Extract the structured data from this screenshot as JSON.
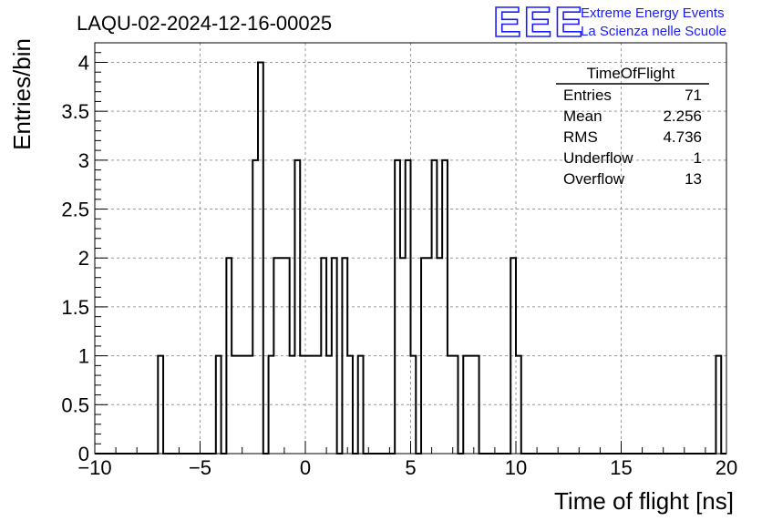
{
  "chart_data": {
    "type": "bar",
    "title": "LAQU-02-2024-12-16-00025",
    "xlabel": "Time of flight [ns]",
    "ylabel": "Entries/bin",
    "xlim": [
      -10,
      20
    ],
    "ylim": [
      0,
      4.2
    ],
    "grid": true,
    "bin_width": 0.25,
    "x_ticks": [
      "−10",
      "−5",
      "0",
      "5",
      "10",
      "15",
      "20"
    ],
    "y_ticks": [
      "0",
      "0.5",
      "1",
      "1.5",
      "2",
      "2.5",
      "3",
      "3.5",
      "4"
    ],
    "bins": [
      {
        "x": -7.0,
        "value": 1
      },
      {
        "x": -4.25,
        "value": 1
      },
      {
        "x": -3.75,
        "value": 2
      },
      {
        "x": -3.5,
        "value": 1
      },
      {
        "x": -3.25,
        "value": 1
      },
      {
        "x": -3.0,
        "value": 1
      },
      {
        "x": -2.75,
        "value": 1
      },
      {
        "x": -2.5,
        "value": 3
      },
      {
        "x": -2.25,
        "value": 4
      },
      {
        "x": -1.75,
        "value": 1
      },
      {
        "x": -1.5,
        "value": 2
      },
      {
        "x": -1.25,
        "value": 2
      },
      {
        "x": -1.0,
        "value": 2
      },
      {
        "x": -0.75,
        "value": 1
      },
      {
        "x": -0.5,
        "value": 3
      },
      {
        "x": -0.25,
        "value": 1
      },
      {
        "x": 0.0,
        "value": 1
      },
      {
        "x": 0.25,
        "value": 1
      },
      {
        "x": 0.5,
        "value": 1
      },
      {
        "x": 0.75,
        "value": 2
      },
      {
        "x": 1.0,
        "value": 1
      },
      {
        "x": 1.25,
        "value": 2
      },
      {
        "x": 1.75,
        "value": 2
      },
      {
        "x": 2.0,
        "value": 1
      },
      {
        "x": 2.5,
        "value": 1
      },
      {
        "x": 4.25,
        "value": 3
      },
      {
        "x": 4.5,
        "value": 2
      },
      {
        "x": 4.75,
        "value": 3
      },
      {
        "x": 5.0,
        "value": 1
      },
      {
        "x": 5.5,
        "value": 2
      },
      {
        "x": 5.75,
        "value": 2
      },
      {
        "x": 6.0,
        "value": 3
      },
      {
        "x": 6.25,
        "value": 2
      },
      {
        "x": 6.5,
        "value": 3
      },
      {
        "x": 6.75,
        "value": 1
      },
      {
        "x": 7.0,
        "value": 1
      },
      {
        "x": 7.5,
        "value": 1
      },
      {
        "x": 7.75,
        "value": 1
      },
      {
        "x": 8.0,
        "value": 1
      },
      {
        "x": 9.75,
        "value": 2
      },
      {
        "x": 10.0,
        "value": 1
      },
      {
        "x": 19.5,
        "value": 1
      }
    ]
  },
  "stats_box": {
    "name": "TimeOfFlight",
    "rows": [
      {
        "label": "Entries",
        "value": "71"
      },
      {
        "label": "Mean",
        "value": "2.256"
      },
      {
        "label": "RMS",
        "value": "4.736"
      },
      {
        "label": "Underflow",
        "value": "1"
      },
      {
        "label": "Overflow",
        "value": "13"
      }
    ]
  },
  "logo": {
    "mark": "EEE",
    "line1": "Extreme Energy Events",
    "line2": "La Scienza nelle Scuole",
    "color": "#1a1aff"
  }
}
